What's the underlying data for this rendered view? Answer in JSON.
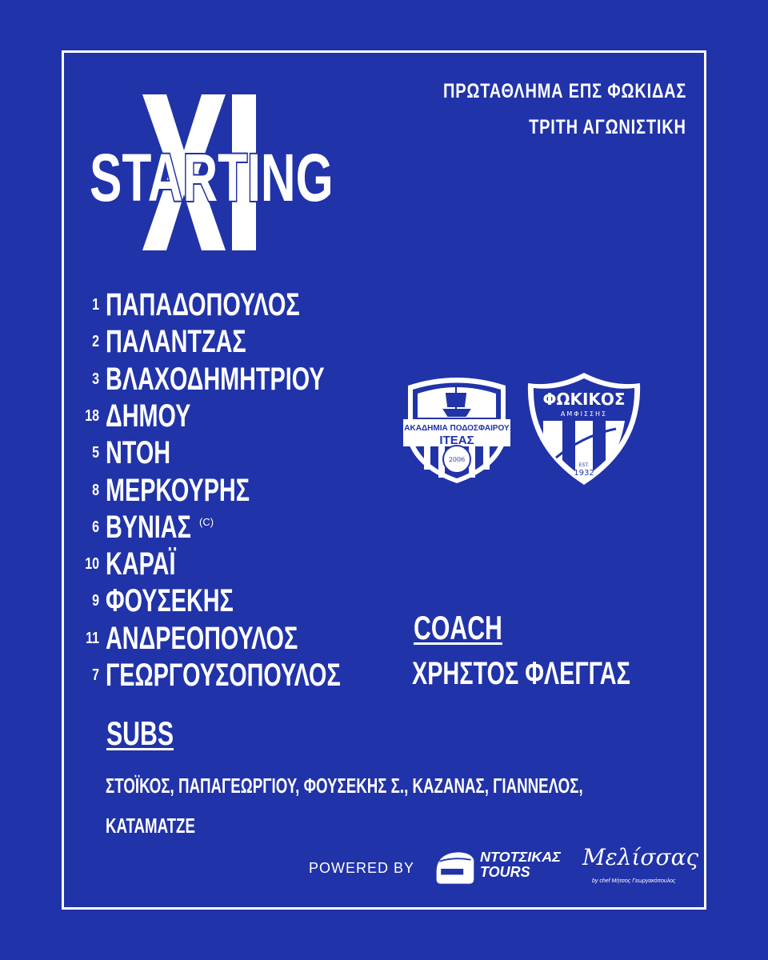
{
  "competition": {
    "line1": "ΠΡΩΤΑΘΛΗΜΑ ΕΠΣ ΦΩΚΙΔΑΣ",
    "line2": "ΤΡΙΤΗ ΑΓΩΝΙΣΤΙΚΗ"
  },
  "title": {
    "xi": "XI",
    "starting": "STARTING"
  },
  "players": [
    {
      "number": "1",
      "name": "ΠΑΠΑΔΟΠΟΥΛΟΣ"
    },
    {
      "number": "2",
      "name": "ΠΑΛΑΝΤΖΑΣ"
    },
    {
      "number": "3",
      "name": "ΒΛΑΧΟΔΗΜΗΤΡΙΟΥ"
    },
    {
      "number": "18",
      "name": "ΔΗΜΟΥ"
    },
    {
      "number": "5",
      "name": "ΝΤΟΗ"
    },
    {
      "number": "8",
      "name": "ΜΕΡΚΟΥΡΗΣ"
    },
    {
      "number": "6",
      "name": "ΒΥΝΙΑΣ",
      "badge": "(C)"
    },
    {
      "number": "10",
      "name": "ΚΑΡΑΪ"
    },
    {
      "number": "9",
      "name": "ΦΟΥΣΕΚΗΣ"
    },
    {
      "number": "11",
      "name": "ΑΝΔΡΕΟΠΟΥΛΟΣ"
    },
    {
      "number": "7",
      "name": "ΓΕΩΡΓΟΥΣΟΠΟΥΛΟΣ"
    }
  ],
  "coach": {
    "heading": "COACH",
    "name": "ΧΡΗΣΤΟΣ ΦΛΕΓΓΑΣ"
  },
  "subs": {
    "heading": "SUBS",
    "line1": "ΣΤΟΪΚΟΣ, ΠΑΠΑΓΕΩΡΓΙΟΥ, ΦΟΥΣΕΚΗΣ Σ., ΚΑΖΑΝΑΣ, ΓΙΑΝΝΕΛΟΣ,",
    "line2": "ΚΑΤΑΜΑΤΖΕ"
  },
  "crests": {
    "home": {
      "line1": "ΑΚΑΔΗΜΙΑ ΠΟΔΟΣΦΑΙΡΟΥ",
      "line2": "ΙΤΕΑΣ",
      "year": "2006"
    },
    "away": {
      "line1": "ΦΩΚΙΚΟΣ",
      "line2": "ΑΜΦΙΣΣΗΣ",
      "est": "EST.",
      "year": "1932"
    }
  },
  "footer": {
    "powered_by": "POWERED BY",
    "sponsor1_line1": "ΝΤΟΤΣΙΚΑΣ",
    "sponsor1_line2": "TOURS",
    "sponsor2": "Μελίσσας",
    "sponsor2_sub": "by chef Μήτσος Γεωργακόπουλος"
  },
  "colors": {
    "background": "#2133a8",
    "foreground": "#ffffff"
  }
}
